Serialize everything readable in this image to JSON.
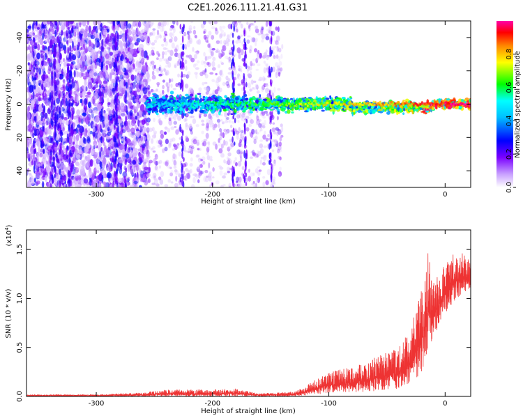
{
  "title": "C2E1.2026.111.21.41.G31",
  "chart_data": [
    {
      "type": "heatmap",
      "xlabel": "Height of straight line (km)",
      "ylabel": "Frequency (Hz)",
      "xlim": [
        -360,
        22
      ],
      "ylim": [
        -50,
        50
      ],
      "xticks": [
        -300,
        -200,
        -100,
        0
      ],
      "yticks": [
        -40,
        -20,
        0,
        20,
        40
      ],
      "colorbar": {
        "label": "Normalized spectral amplitude",
        "range": [
          0.0,
          1.0
        ],
        "ticks": [
          0.0,
          0.2,
          0.4,
          0.6,
          0.8
        ],
        "tick_labels": [
          "0.0",
          "0.2",
          "0.4",
          "0.6",
          "0.8"
        ],
        "colormap": [
          "#ffffff",
          "#7a00ff",
          "#0000ff",
          "#00ffff",
          "#00ff00",
          "#ffff00",
          "#ff8800",
          "#ff0000",
          "#ff00aa"
        ]
      },
      "description_of_features": {
        "background_noise_region": [
          -360,
          -255
        ],
        "sparse_noise_region": [
          -255,
          -140
        ],
        "signal_band_center_hz": 0,
        "signal_band_start_km": -258,
        "strong_signal_km": [
          -20,
          20
        ]
      },
      "tick_labels_x": [
        "-300",
        "-200",
        "-100",
        "0"
      ],
      "tick_labels_y": [
        "40",
        "20",
        "0",
        "-20",
        "-40"
      ]
    },
    {
      "type": "line",
      "xlabel": "Height of straight line (km)",
      "ylabel": "SNR (10 * v/v)",
      "multiplier": "(x10",
      "multiplier_exp": "4",
      "multiplier_close": ")",
      "xlim": [
        -360,
        22
      ],
      "ylim": [
        0,
        1.7
      ],
      "xticks": [
        -300,
        -200,
        -100,
        0
      ],
      "yticks": [
        0.0,
        0.5,
        1.0,
        1.5
      ],
      "tick_labels_x": [
        "-300",
        "-200",
        "-100",
        "0"
      ],
      "tick_labels_y": [
        "0.0",
        "0.5",
        "1.0",
        "1.5"
      ],
      "color": "#ee3333",
      "envelope": {
        "x": [
          -360,
          -300,
          -260,
          -240,
          -200,
          -180,
          -160,
          -130,
          -110,
          -100,
          -80,
          -60,
          -40,
          -30,
          -20,
          -15,
          -10,
          0,
          10,
          22
        ],
        "y": [
          0.02,
          0.02,
          0.04,
          0.07,
          0.07,
          0.08,
          0.03,
          0.05,
          0.18,
          0.25,
          0.3,
          0.4,
          0.5,
          0.7,
          1.1,
          1.55,
          1.2,
          1.35,
          1.5,
          1.4
        ],
        "base": [
          0.0,
          0.0,
          0.0,
          0.0,
          0.0,
          0.0,
          0.0,
          0.0,
          0.02,
          0.03,
          0.04,
          0.05,
          0.08,
          0.12,
          0.25,
          0.4,
          0.6,
          0.85,
          1.0,
          1.1
        ]
      }
    }
  ]
}
